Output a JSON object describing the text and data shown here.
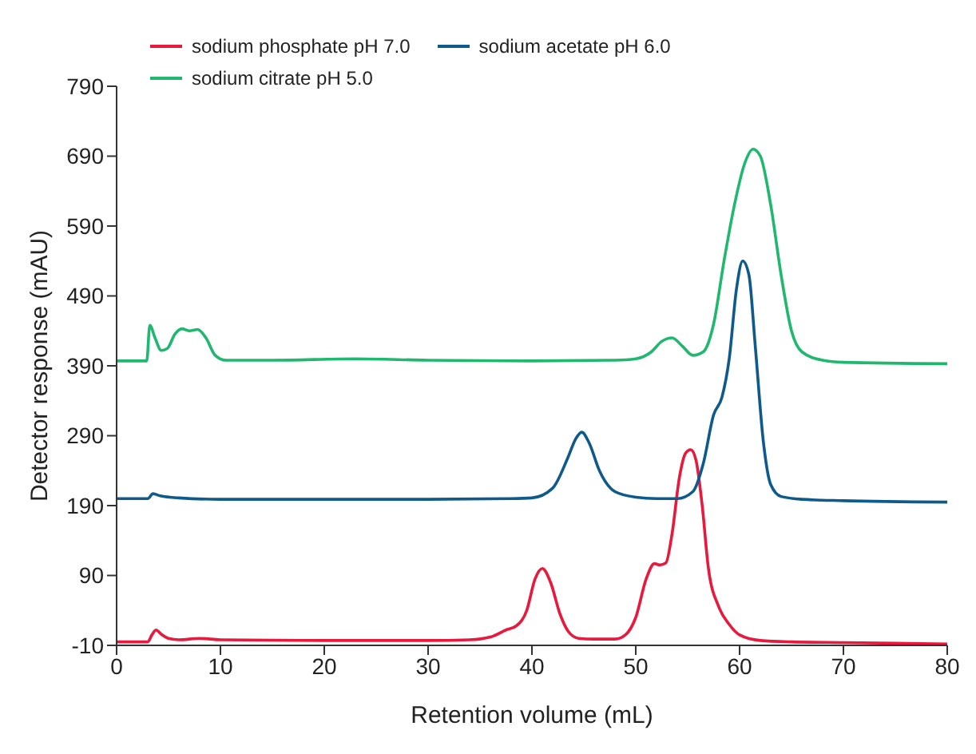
{
  "chart_data": {
    "type": "line",
    "xlabel": "Retention volume (mL)",
    "ylabel": "Detector response (mAU)",
    "xlim": [
      0,
      80
    ],
    "xticks": [
      0,
      10,
      20,
      30,
      40,
      50,
      60,
      70,
      80
    ],
    "ylim": [
      -10,
      790
    ],
    "yticks": [
      -10,
      90,
      190,
      290,
      390,
      490,
      590,
      690,
      790
    ],
    "grid": false,
    "legend": "top left",
    "marker": "none",
    "line_style": "solid",
    "series": [
      {
        "name": "sodium phosphate pH 7.0",
        "color": "#e8193c",
        "x": [
          0,
          3,
          3.4,
          3.8,
          4.3,
          5,
          6,
          8,
          10,
          20,
          30,
          34,
          36,
          37.5,
          38.5,
          39.5,
          40.3,
          41,
          41.8,
          42.7,
          43.5,
          44.5,
          46,
          48,
          49,
          50,
          51,
          51.8,
          52.3,
          52.9,
          53.5,
          54.2,
          54.8,
          55.3,
          55.8,
          56.4,
          57,
          58,
          59,
          60,
          62,
          65,
          70,
          80
        ],
        "values": [
          -5,
          -5,
          5,
          12,
          6,
          0,
          -2,
          0,
          -2,
          -3,
          -3,
          -2,
          2,
          12,
          18,
          40,
          85,
          100,
          80,
          35,
          10,
          0,
          -1,
          -1,
          5,
          30,
          85,
          107,
          105,
          108,
          150,
          230,
          265,
          270,
          255,
          190,
          100,
          45,
          20,
          5,
          -3,
          -5,
          -6,
          -8
        ]
      },
      {
        "name": "sodium acetate pH 6.0",
        "color": "#0e5a8a",
        "x": [
          0,
          3,
          3.5,
          4.2,
          6,
          10,
          20,
          30,
          38,
          40,
          42,
          43.5,
          44.2,
          44.8,
          45.5,
          46.5,
          48,
          50,
          52,
          54,
          55.5,
          56.5,
          57.5,
          58.3,
          59,
          59.7,
          60.3,
          60.9,
          61.5,
          62.3,
          63,
          64,
          66,
          70,
          80
        ],
        "values": [
          200,
          200,
          207,
          204,
          201,
          199,
          199,
          199,
          200,
          201,
          215,
          260,
          285,
          295,
          280,
          240,
          210,
          202,
          200,
          200,
          210,
          250,
          320,
          345,
          400,
          500,
          540,
          520,
          420,
          280,
          220,
          203,
          199,
          197,
          195
        ]
      },
      {
        "name": "sodium citrate pH 5.0",
        "color": "#1fb86e",
        "x": [
          0,
          2.9,
          3.2,
          3.7,
          4.3,
          4.9,
          5.6,
          6.3,
          7,
          7.8,
          8.6,
          9.5,
          10.5,
          15,
          23,
          30,
          40,
          48,
          50,
          51.5,
          52.5,
          53.5,
          54.5,
          55.5,
          56.5,
          57.5,
          58.5,
          59.5,
          60.5,
          61.3,
          62,
          63,
          64,
          65,
          66,
          68,
          70,
          80
        ],
        "values": [
          397,
          397,
          448,
          430,
          412,
          415,
          435,
          443,
          440,
          442,
          430,
          405,
          398,
          398,
          400,
          398,
          397,
          398,
          400,
          410,
          425,
          430,
          418,
          405,
          410,
          450,
          540,
          620,
          680,
          700,
          690,
          620,
          520,
          440,
          410,
          398,
          395,
          393
        ]
      }
    ]
  }
}
